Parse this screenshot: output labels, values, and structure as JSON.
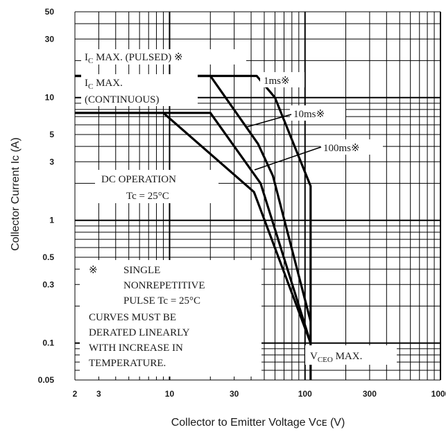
{
  "chart_data": {
    "type": "line",
    "xlabel": "Collector to Emitter Voltage  Vᴄᴇ  (V)",
    "ylabel": "Collector Current  Iᴄ  (A)",
    "xscale": "log",
    "yscale": "log",
    "xlim": [
      2,
      1000
    ],
    "ylim": [
      0.05,
      50
    ],
    "x_ticks": [
      "2",
      "3",
      "10",
      "30",
      "100",
      "300",
      "1000"
    ],
    "y_ticks": [
      "50",
      "30",
      "10",
      "5",
      "3",
      "1",
      "0.5",
      "0.3",
      "0.1",
      "0.05"
    ],
    "grid": true,
    "series": [
      {
        "name": "1ms※",
        "x": [
          2,
          44,
          60,
          110,
          110
        ],
        "y": [
          15,
          15,
          10,
          1.9,
          0.05
        ]
      },
      {
        "name": "10ms※",
        "x": [
          2,
          20,
          45,
          58,
          110
        ],
        "y": [
          15,
          15,
          4.2,
          2.3,
          0.15
        ]
      },
      {
        "name": "100ms※",
        "x": [
          2,
          20,
          47,
          110
        ],
        "y": [
          7.5,
          7.5,
          2.0,
          0.1
        ]
      },
      {
        "name": "DC OPERATION",
        "x": [
          2,
          9,
          42,
          110
        ],
        "y": [
          7.5,
          7.5,
          1.7,
          0.1
        ]
      }
    ],
    "annotations": {
      "ic_pulsed": {
        "main": "I",
        "sub": "C",
        "rest": " MAX. (PULSED) ※"
      },
      "ic_continuous": {
        "main": "I",
        "sub": "C",
        "rest": " MAX.",
        "line2": "(CONTINUOUS)"
      },
      "ms1": "1ms※",
      "ms10": "10ms※",
      "ms100": "100ms※",
      "dc": [
        "DC OPERATION",
        "Tc = 25°C"
      ],
      "vceo": {
        "main": "V",
        "sub": "CEO",
        "rest": " MAX."
      },
      "note_mark": "※",
      "note": [
        "SINGLE",
        "NONREPETITIVE",
        "PULSE  Tc = 25°C",
        "CURVES MUST BE",
        "DERATED LINEARLY",
        "WITH INCREASE IN",
        "TEMPERATURE."
      ]
    },
    "colors": {
      "line": "#000000",
      "background": "#ffffff"
    }
  }
}
